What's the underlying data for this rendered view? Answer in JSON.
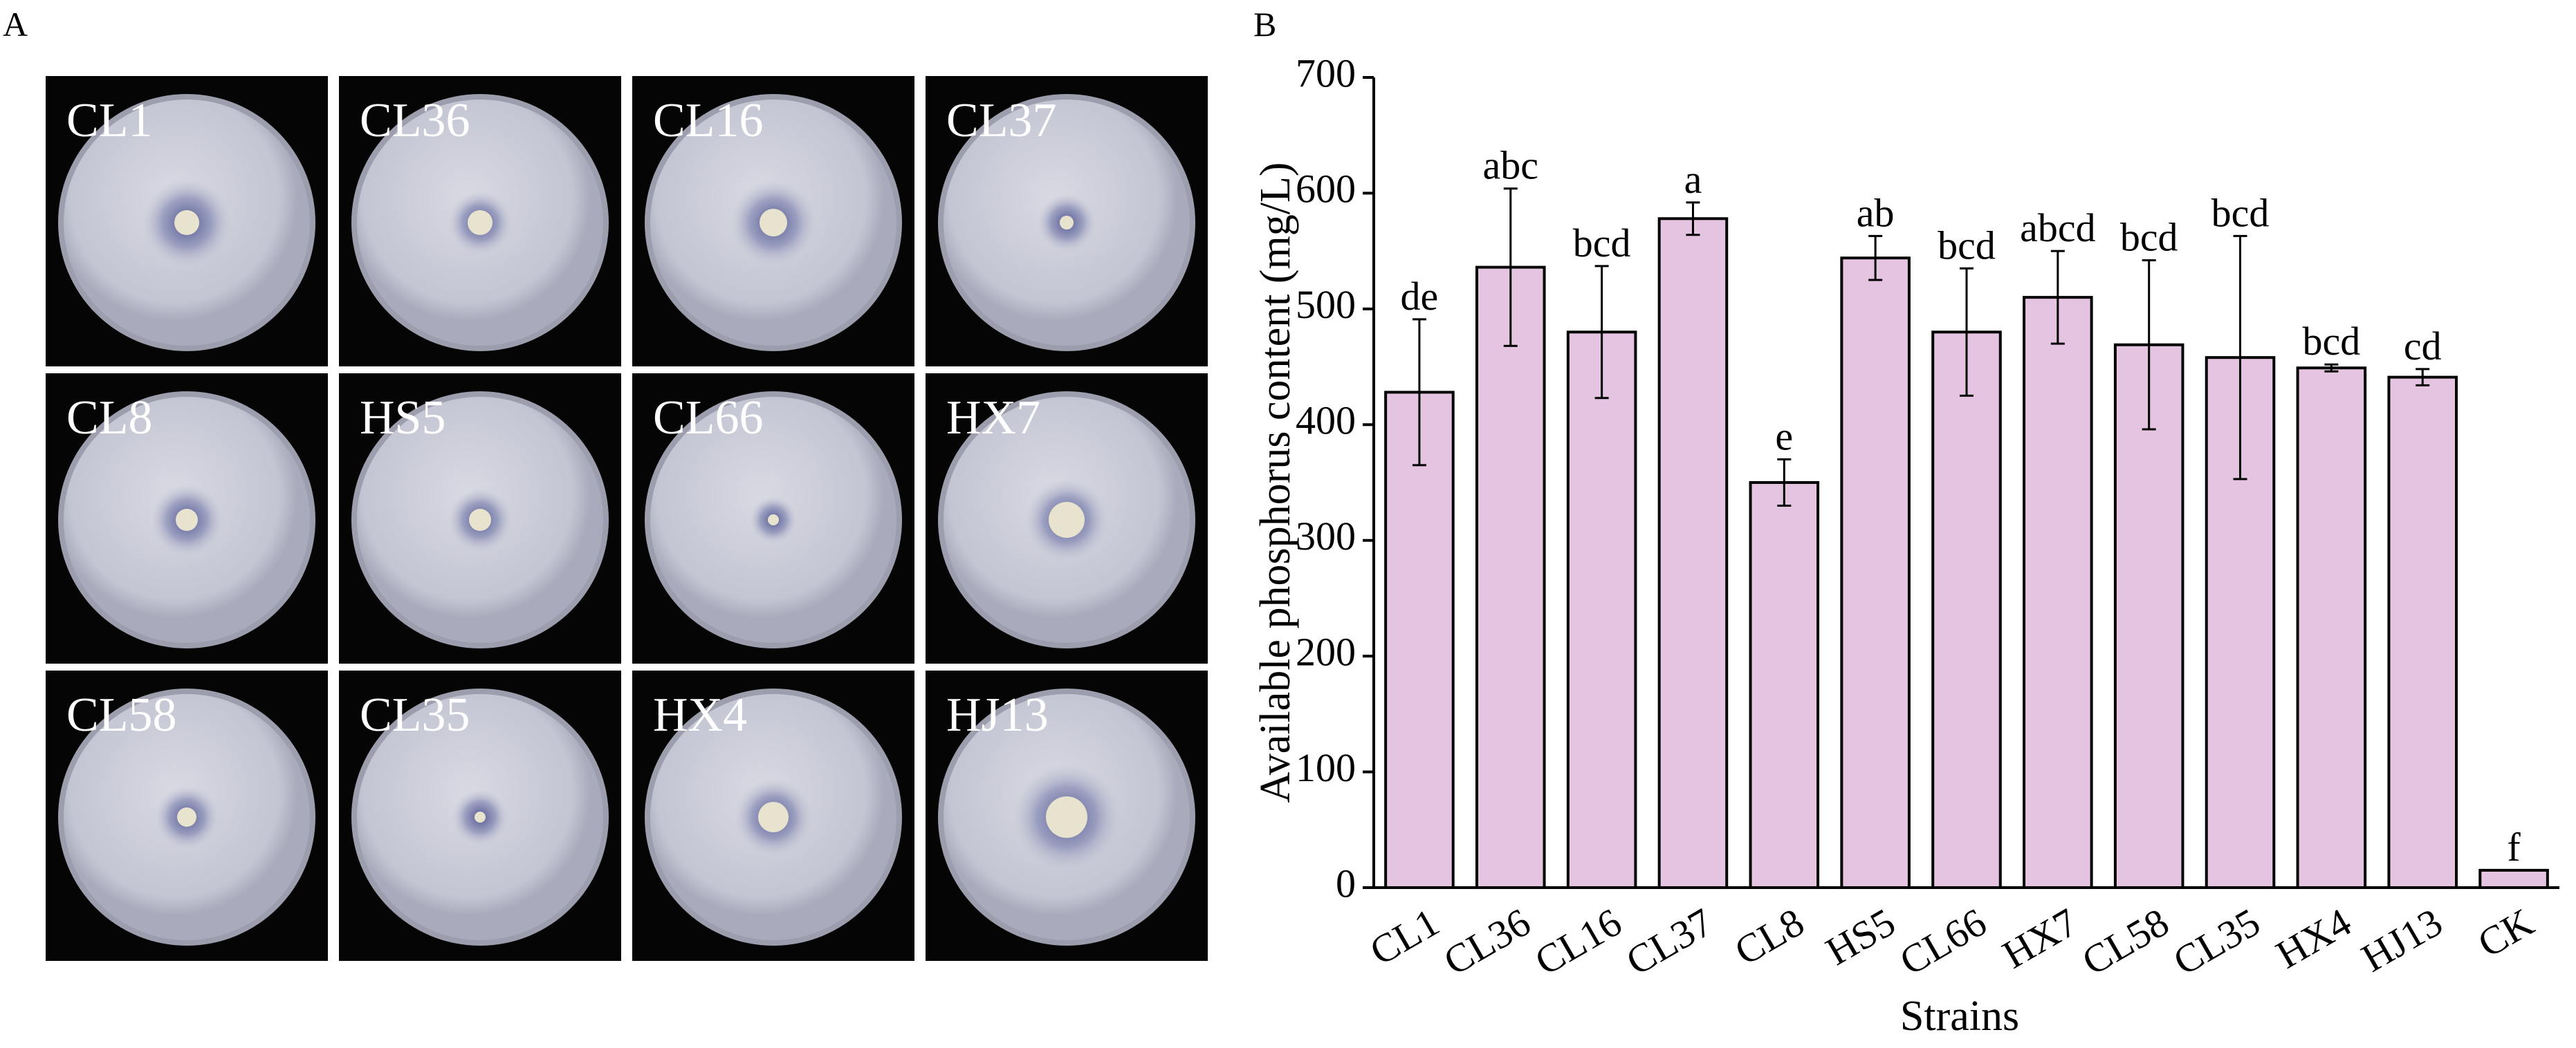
{
  "panel_a": {
    "letter": "A",
    "plates": [
      {
        "label": "CL1"
      },
      {
        "label": "CL36"
      },
      {
        "label": "CL16"
      },
      {
        "label": "CL37"
      },
      {
        "label": "CL8"
      },
      {
        "label": "HS5"
      },
      {
        "label": "CL66"
      },
      {
        "label": "HX7"
      },
      {
        "label": "CL58"
      },
      {
        "label": "CL35"
      },
      {
        "label": "HX4"
      },
      {
        "label": "HJ13"
      }
    ]
  },
  "panel_b": {
    "letter": "B"
  },
  "chart_data": {
    "type": "bar",
    "title": "",
    "xlabel": "Strains",
    "ylabel": "Available phosphorus content (mg/L)",
    "ylim": [
      0,
      700
    ],
    "yticks": [
      0,
      100,
      200,
      300,
      400,
      500,
      600,
      700
    ],
    "categories": [
      "CL1",
      "CL36",
      "CL16",
      "CL37",
      "CL8",
      "HS5",
      "CL66",
      "HX7",
      "CL58",
      "CL35",
      "HX4",
      "HJ13",
      "CK"
    ],
    "values": [
      428,
      536,
      480,
      578,
      350,
      544,
      480,
      510,
      469,
      458,
      449,
      441,
      15
    ],
    "errors": [
      63,
      68,
      57,
      14,
      20,
      19,
      55,
      40,
      73,
      105,
      3,
      7,
      0
    ],
    "significance_letters": [
      "de",
      "abc",
      "bcd",
      "a",
      "e",
      "ab",
      "bcd",
      "abcd",
      "bcd",
      "bcd",
      "bcd",
      "cd",
      "f"
    ],
    "bar_color": "#e5c4e1",
    "grid": false,
    "legend": "none"
  }
}
